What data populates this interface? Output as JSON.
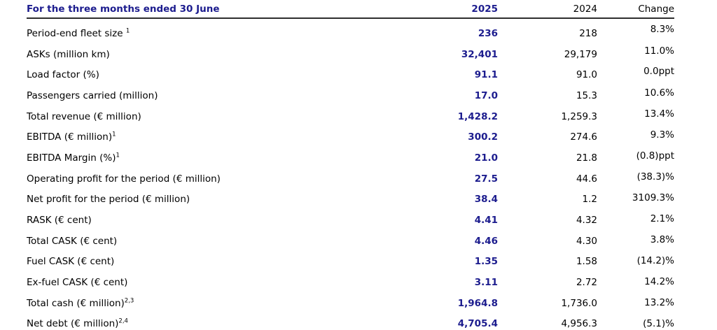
{
  "colors": {
    "accent_navy": "#1c1c8e",
    "text": "#000000",
    "header_rule": "#2e2e2e"
  },
  "table": {
    "header": {
      "label": "For the three months ended 30 June",
      "col_2025": "2025",
      "col_2024": "2024",
      "col_change": "Change"
    },
    "rows": [
      {
        "label": "Period-end fleet size ",
        "sup": "1",
        "v2025": "236",
        "v2024": "218",
        "change": "8.3%"
      },
      {
        "label": "ASKs (million km)",
        "v2025": "32,401",
        "v2024": "29,179",
        "change": "11.0%"
      },
      {
        "label": "Load factor (%)",
        "v2025": "91.1",
        "v2024": "91.0",
        "change": "0.0ppt"
      },
      {
        "label": "Passengers carried (million)",
        "v2025": "17.0",
        "v2024": "15.3",
        "change": "10.6%"
      },
      {
        "label": "Total revenue (€ million)",
        "v2025": "1,428.2",
        "v2024": "1,259.3",
        "change": "13.4%"
      },
      {
        "label": "EBITDA (€ million)",
        "sup": "1",
        "v2025": "300.2",
        "v2024": "274.6",
        "change": "9.3%"
      },
      {
        "label": "EBITDA Margin (%)",
        "sup": "1",
        "v2025": "21.0",
        "v2024": "21.8",
        "change": "(0.8)ppt"
      },
      {
        "label": "Operating profit for the period (€ million)",
        "v2025": "27.5",
        "v2024": "44.6",
        "change": "(38.3)%"
      },
      {
        "label": "Net profit for the period (€ million)",
        "v2025": "38.4",
        "v2024": "1.2",
        "change": "3109.3%"
      },
      {
        "label": "RASK (€ cent)",
        "v2025": "4.41",
        "v2024": "4.32",
        "change": "2.1%"
      },
      {
        "label": "Total CASK (€ cent)",
        "v2025": "4.46",
        "v2024": "4.30",
        "change": "3.8%"
      },
      {
        "label": "Fuel CASK (€ cent)",
        "v2025": "1.35",
        "v2024": "1.58",
        "change": "(14.2)%"
      },
      {
        "label": "Ex-fuel CASK (€ cent)",
        "v2025": "3.11",
        "v2024": "2.72",
        "change": "14.2%"
      },
      {
        "label": "Total cash (€ million)",
        "sup": "2,3",
        "v2025": "1,964.8",
        "v2024": "1,736.0",
        "change": "13.2%"
      },
      {
        "label": "Net debt (€ million)",
        "sup": "2,4",
        "v2025": "4,705.4",
        "v2024": "4,956.3",
        "change": "(5.1)%"
      }
    ]
  }
}
